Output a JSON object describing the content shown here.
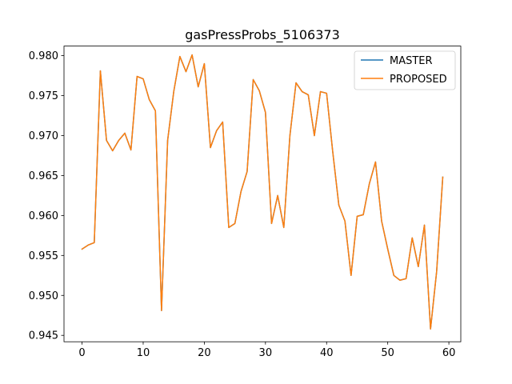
{
  "chart_data": {
    "type": "line",
    "title": "gasPressProbs_5106373",
    "xlabel": "",
    "ylabel": "",
    "xlim": [
      -2.95,
      61.95
    ],
    "ylim": [
      0.9442,
      0.9812
    ],
    "x_ticks": [
      0,
      10,
      20,
      30,
      40,
      50,
      60
    ],
    "x_tick_labels": [
      "0",
      "10",
      "20",
      "30",
      "40",
      "50",
      "60"
    ],
    "y_ticks": [
      0.945,
      0.95,
      0.955,
      0.96,
      0.965,
      0.97,
      0.975,
      0.98
    ],
    "y_tick_labels": [
      "0.945",
      "0.950",
      "0.955",
      "0.960",
      "0.965",
      "0.970",
      "0.975",
      "0.980"
    ],
    "grid": false,
    "legend_position": "top-right",
    "x": [
      0,
      1,
      2,
      3,
      4,
      5,
      6,
      7,
      8,
      9,
      10,
      11,
      12,
      13,
      14,
      15,
      16,
      17,
      18,
      19,
      20,
      21,
      22,
      23,
      24,
      25,
      26,
      27,
      28,
      29,
      30,
      31,
      32,
      33,
      34,
      35,
      36,
      37,
      38,
      39,
      40,
      41,
      42,
      43,
      44,
      45,
      46,
      47,
      48,
      49,
      50,
      51,
      52,
      53,
      54,
      55,
      56,
      57,
      58,
      59
    ],
    "series": [
      {
        "name": "MASTER",
        "color": "#1f77b4",
        "values": [
          0.9558,
          0.9563,
          0.9566,
          0.9781,
          0.9694,
          0.9681,
          0.9694,
          0.9703,
          0.9682,
          0.9774,
          0.9771,
          0.9745,
          0.9731,
          0.9481,
          0.9694,
          0.9755,
          0.9799,
          0.978,
          0.9801,
          0.9761,
          0.979,
          0.9685,
          0.9706,
          0.9717,
          0.9585,
          0.959,
          0.963,
          0.9655,
          0.977,
          0.9756,
          0.9729,
          0.959,
          0.9625,
          0.9585,
          0.97,
          0.9766,
          0.9755,
          0.9751,
          0.97,
          0.9755,
          0.9753,
          0.968,
          0.9613,
          0.9593,
          0.9525,
          0.9599,
          0.9601,
          0.964,
          0.9667,
          0.9593,
          0.9558,
          0.9525,
          0.9519,
          0.9521,
          0.9572,
          0.9536,
          0.9588,
          0.9458,
          0.953,
          0.9648
        ]
      },
      {
        "name": "PROPOSED",
        "color": "#ff7f0e",
        "values": [
          0.9558,
          0.9563,
          0.9566,
          0.9781,
          0.9694,
          0.9681,
          0.9694,
          0.9703,
          0.9682,
          0.9774,
          0.9771,
          0.9745,
          0.9731,
          0.9481,
          0.9694,
          0.9755,
          0.9799,
          0.978,
          0.9801,
          0.9761,
          0.979,
          0.9685,
          0.9706,
          0.9717,
          0.9585,
          0.959,
          0.963,
          0.9655,
          0.977,
          0.9756,
          0.9729,
          0.959,
          0.9625,
          0.9585,
          0.97,
          0.9766,
          0.9755,
          0.9751,
          0.97,
          0.9755,
          0.9753,
          0.968,
          0.9613,
          0.9593,
          0.9525,
          0.9599,
          0.9601,
          0.964,
          0.9667,
          0.9593,
          0.9558,
          0.9525,
          0.9519,
          0.9521,
          0.9572,
          0.9536,
          0.9588,
          0.9458,
          0.953,
          0.9648
        ]
      }
    ]
  }
}
